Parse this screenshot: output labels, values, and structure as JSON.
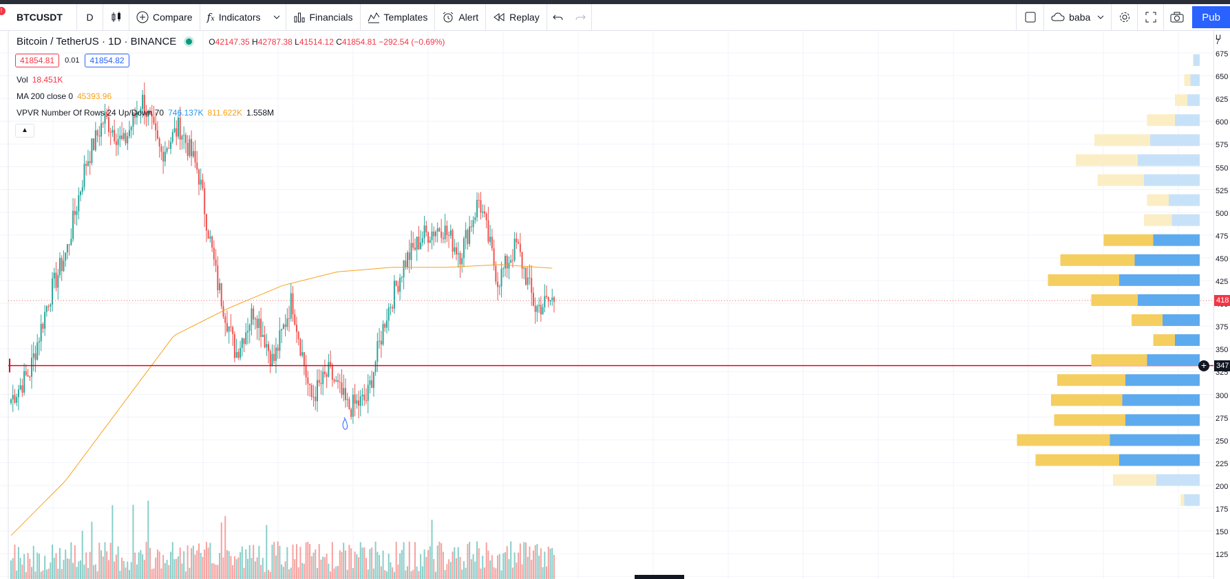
{
  "toolbar": {
    "symbol": "BTCUSDT",
    "interval": "D",
    "compare_label": "Compare",
    "indicators_label": "Indicators",
    "financials_label": "Financials",
    "templates_label": "Templates",
    "alert_label": "Alert",
    "replay_label": "Replay",
    "user_label": "baba",
    "publish_label": "Pub"
  },
  "legend": {
    "title": "Bitcoin / TetherUS · 1D · BINANCE",
    "ohlc": {
      "o_key": "O",
      "o": "42147.35",
      "h_key": "H",
      "h": "42787.38",
      "l_key": "L",
      "l": "41514.12",
      "c_key": "C",
      "c": "41854.81",
      "change": "−292.54 (−0.69%)"
    },
    "sell_price": "41854.81",
    "spread": "0.01",
    "buy_price": "41854.82",
    "vol_label": "Vol",
    "vol_value": "18.451K",
    "ma_label": "MA 200 close 0",
    "ma_value": "45393.96",
    "vpvr_label": "VPVR Number Of Rows 24 Up/Down 70",
    "vpvr_up": "746.137K",
    "vpvr_down": "811.622K",
    "vpvr_total": "1.558M",
    "collapse_icon": "chevron-up-icon"
  },
  "price_scale": {
    "labels": [
      "7",
      "675",
      "650",
      "625",
      "600",
      "575",
      "550",
      "525",
      "500",
      "475",
      "450",
      "425",
      "400",
      "375",
      "350",
      "325",
      "300",
      "275",
      "250",
      "225",
      "200",
      "175",
      "150",
      "125"
    ],
    "top_partial": "U",
    "last_price_label": "418",
    "cursor_label": "347"
  },
  "colors": {
    "up": "#26a69a",
    "down": "#ef5350",
    "ma": "#f7a21b",
    "vp_up": "#5eaaee",
    "vp_down": "#f5ce60",
    "vp_up_light": "#c7e2f8",
    "vp_down_light": "#fbeec5",
    "crosshair": "#e3001b",
    "accent": "#2962ff"
  },
  "chart_data": {
    "type": "candlestick",
    "symbol": "BTCUSDT",
    "interval": "1D",
    "price_range": [
      12500,
      70000
    ],
    "last_price": 41854.81,
    "crosshair_price": 34700,
    "ma_period": 200,
    "waypoints_close": [
      31000,
      34000,
      42000,
      47500,
      57000,
      62000,
      59000,
      64000,
      58000,
      61000,
      56000,
      44000,
      36000,
      41000,
      35000,
      42000,
      31000,
      34000,
      30000,
      31000,
      40000,
      46000,
      49000,
      50000,
      47000,
      53000,
      44000,
      48000,
      41000,
      42000
    ],
    "ma_waypoints": [
      16000,
      22000,
      30000,
      38000,
      41000,
      43500,
      45000,
      45500,
      45500,
      45800,
      45400
    ],
    "volume_profile": [
      {
        "price": 68300,
        "up": 0.1,
        "down": 0.01
      },
      {
        "price": 66100,
        "up": 0.15,
        "down": 0.1
      },
      {
        "price": 63900,
        "up": 0.2,
        "down": 0.2
      },
      {
        "price": 61700,
        "up": 0.4,
        "down": 0.45
      },
      {
        "price": 59500,
        "up": 0.8,
        "down": 0.9
      },
      {
        "price": 57300,
        "up": 1.0,
        "down": 1.0
      },
      {
        "price": 55100,
        "up": 0.9,
        "down": 0.75
      },
      {
        "price": 52900,
        "up": 0.5,
        "down": 0.35
      },
      {
        "price": 50700,
        "up": 0.45,
        "down": 0.45
      },
      {
        "price": 48500,
        "up": 0.75,
        "down": 0.8
      },
      {
        "price": 46300,
        "up": 1.05,
        "down": 1.2
      },
      {
        "price": 44100,
        "up": 1.3,
        "down": 1.15
      },
      {
        "price": 41900,
        "up": 1.0,
        "down": 0.75
      },
      {
        "price": 39700,
        "up": 0.6,
        "down": 0.5
      },
      {
        "price": 37500,
        "up": 0.4,
        "down": 0.35
      },
      {
        "price": 35300,
        "up": 0.85,
        "down": 0.9
      },
      {
        "price": 33100,
        "up": 1.2,
        "down": 1.1
      },
      {
        "price": 30900,
        "up": 1.25,
        "down": 1.15
      },
      {
        "price": 28700,
        "up": 1.2,
        "down": 1.15
      },
      {
        "price": 26500,
        "up": 1.45,
        "down": 1.5
      },
      {
        "price": 24300,
        "up": 1.3,
        "down": 1.35
      },
      {
        "price": 22100,
        "up": 0.7,
        "down": 0.7
      },
      {
        "price": 19900,
        "up": 0.25,
        "down": 0.06
      },
      {
        "price": 17700,
        "up": 0,
        "down": 0
      }
    ]
  }
}
